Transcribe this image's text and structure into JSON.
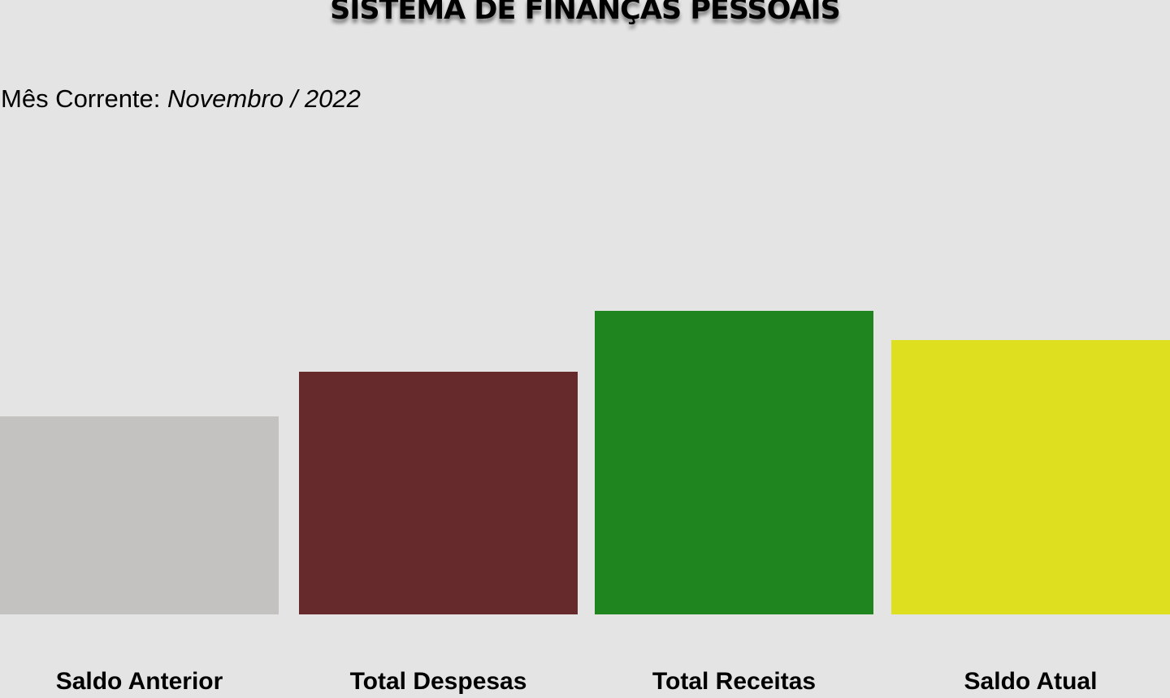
{
  "header": {
    "title": "SISTEMA DE FINANÇAS PESSOAIS"
  },
  "period": {
    "label": "Mês Corrente:",
    "value": "Novembro / 2022"
  },
  "cards": [
    {
      "label": "Saldo Anterior",
      "color": "#c3c2c0"
    },
    {
      "label": "Total Despesas",
      "color": "#662a2d"
    },
    {
      "label": "Total Receitas",
      "color": "#1f861f"
    },
    {
      "label": "Saldo Atual",
      "color": "#dee01f"
    }
  ]
}
